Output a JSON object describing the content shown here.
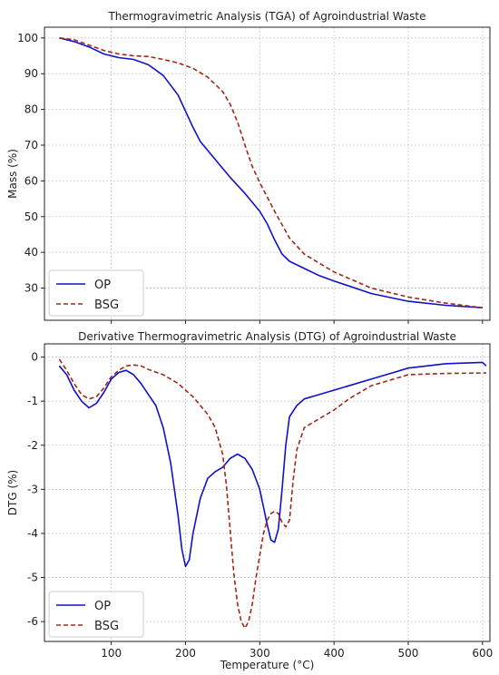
{
  "chart_data": [
    {
      "type": "line",
      "title": "Thermogravimetric Analysis (TGA) of Agroindustrial Waste",
      "xlabel": "",
      "ylabel": "Mass (%)",
      "xlim": [
        10,
        610
      ],
      "ylim": [
        21,
        103
      ],
      "xticks": [
        100,
        200,
        300,
        400,
        500,
        600
      ],
      "yticks": [
        30,
        40,
        50,
        60,
        70,
        80,
        90,
        100
      ],
      "show_xticklabels": false,
      "grid": true,
      "legend": "bottom-left",
      "series": [
        {
          "name": "OP",
          "color": "#1010cc",
          "dash": "none",
          "x": [
            30,
            50,
            70,
            90,
            110,
            130,
            150,
            170,
            190,
            200,
            210,
            220,
            240,
            260,
            280,
            300,
            310,
            320,
            330,
            340,
            360,
            380,
            400,
            450,
            500,
            550,
            600
          ],
          "y": [
            100,
            99,
            97.5,
            95.5,
            94.5,
            94,
            92.5,
            89.5,
            84,
            79.5,
            75,
            71,
            66,
            61,
            56.5,
            51.5,
            48,
            43.5,
            39.5,
            37.5,
            35.5,
            33.5,
            32,
            28.5,
            26.3,
            25.2,
            24.5
          ]
        },
        {
          "name": "BSG",
          "color": "#a0281a",
          "dash": "5,3",
          "x": [
            30,
            50,
            70,
            90,
            110,
            130,
            150,
            170,
            190,
            210,
            230,
            250,
            260,
            270,
            280,
            290,
            300,
            320,
            340,
            360,
            380,
            400,
            450,
            500,
            550,
            600
          ],
          "y": [
            100,
            99.5,
            98,
            96.5,
            95.5,
            95,
            94.8,
            94,
            93,
            91.5,
            89,
            85,
            81.5,
            76.5,
            70,
            64,
            59.5,
            51.5,
            44,
            39.5,
            37,
            34.5,
            30,
            27.5,
            25.8,
            24.5
          ]
        }
      ]
    },
    {
      "type": "line",
      "title": "Derivative Thermogravimetric Analysis (DTG) of Agroindustrial Waste",
      "xlabel": "Temperature (°C)",
      "ylabel": "DTG (%)",
      "xlim": [
        10,
        610
      ],
      "ylim": [
        -6.45,
        0.3
      ],
      "xticks": [
        100,
        200,
        300,
        400,
        500,
        600
      ],
      "yticks": [
        0,
        -1,
        -2,
        -3,
        -4,
        -5,
        -6
      ],
      "show_xticklabels": true,
      "grid": true,
      "legend": "bottom-left",
      "series": [
        {
          "name": "OP",
          "color": "#1010cc",
          "dash": "none",
          "x": [
            30,
            40,
            50,
            60,
            70,
            80,
            90,
            100,
            110,
            120,
            130,
            140,
            150,
            160,
            170,
            180,
            190,
            195,
            200,
            205,
            210,
            220,
            230,
            240,
            250,
            260,
            270,
            280,
            290,
            300,
            310,
            315,
            320,
            325,
            330,
            335,
            340,
            350,
            360,
            380,
            400,
            420,
            450,
            480,
            500,
            550,
            600,
            605
          ],
          "y": [
            -0.2,
            -0.4,
            -0.75,
            -1.0,
            -1.15,
            -1.05,
            -0.8,
            -0.5,
            -0.35,
            -0.3,
            -0.4,
            -0.6,
            -0.85,
            -1.1,
            -1.6,
            -2.4,
            -3.6,
            -4.35,
            -4.75,
            -4.6,
            -4.0,
            -3.2,
            -2.75,
            -2.6,
            -2.5,
            -2.3,
            -2.2,
            -2.3,
            -2.55,
            -3.0,
            -3.8,
            -4.15,
            -4.2,
            -3.9,
            -3.0,
            -2.0,
            -1.35,
            -1.1,
            -0.95,
            -0.85,
            -0.75,
            -0.65,
            -0.5,
            -0.35,
            -0.25,
            -0.15,
            -0.12,
            -0.2
          ]
        },
        {
          "name": "BSG",
          "color": "#a0281a",
          "dash": "5,3",
          "x": [
            30,
            40,
            50,
            60,
            70,
            80,
            90,
            100,
            110,
            120,
            130,
            140,
            150,
            170,
            190,
            210,
            230,
            240,
            250,
            255,
            260,
            265,
            270,
            275,
            280,
            285,
            290,
            295,
            300,
            305,
            310,
            315,
            320,
            325,
            330,
            335,
            340,
            345,
            350,
            360,
            380,
            400,
            420,
            450,
            480,
            500,
            550,
            600,
            605
          ],
          "y": [
            -0.05,
            -0.3,
            -0.6,
            -0.85,
            -0.95,
            -0.9,
            -0.7,
            -0.45,
            -0.3,
            -0.2,
            -0.18,
            -0.2,
            -0.28,
            -0.4,
            -0.6,
            -0.9,
            -1.3,
            -1.6,
            -2.2,
            -2.9,
            -3.9,
            -4.9,
            -5.6,
            -6.0,
            -6.15,
            -6.0,
            -5.6,
            -5.0,
            -4.5,
            -4.0,
            -3.7,
            -3.55,
            -3.5,
            -3.55,
            -3.75,
            -3.85,
            -3.7,
            -2.8,
            -2.1,
            -1.6,
            -1.4,
            -1.2,
            -0.95,
            -0.65,
            -0.5,
            -0.4,
            -0.37,
            -0.36,
            -0.36
          ]
        }
      ]
    }
  ]
}
